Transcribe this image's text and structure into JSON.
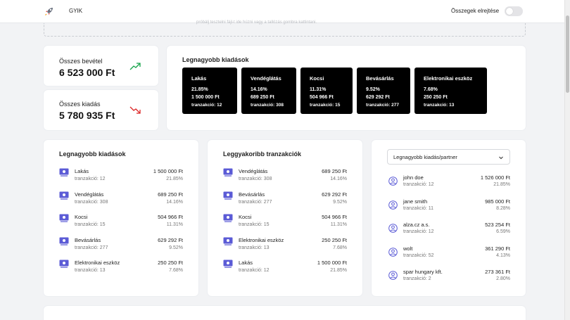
{
  "nav": {
    "link": "GYIK",
    "toggle_label": "Összegek elrejtése",
    "logo": "rocket-icon"
  },
  "upload_hint": "próbálj tesztelni fájl-t ide húzni vagy a tallózás gombra kattintani.",
  "income": {
    "label": "Összes bevétel",
    "value": "6 523 000 Ft",
    "trend": "trend-up-icon",
    "color": "#16a34a"
  },
  "expense": {
    "label": "Összes kiadás",
    "value": "5 780 935 Ft",
    "trend": "trend-down-icon",
    "color": "#dc2626"
  },
  "top_categories": {
    "title": "Legnagyobb kiadások",
    "cards": [
      {
        "name": "Lakás",
        "pct": "21.85%",
        "amount": "1 500 000 Ft",
        "tx": "tranzakció: 12"
      },
      {
        "name": "Vendéglátás",
        "pct": "14.16%",
        "amount": "689 250 Ft",
        "tx": "tranzakció: 308"
      },
      {
        "name": "Kocsi",
        "pct": "11.31%",
        "amount": "504 966 Ft",
        "tx": "tranzakció: 15"
      },
      {
        "name": "Bevásárlás",
        "pct": "9.52%",
        "amount": "629 292 Ft",
        "tx": "tranzakció: 277"
      },
      {
        "name": "Elektronikai eszköz",
        "pct": "7.68%",
        "amount": "250 250 Ft",
        "tx": "tranzakció: 13"
      }
    ]
  },
  "largest": {
    "title": "Legnagyobb kiadások",
    "rows": [
      {
        "name": "Lakás",
        "tx": "tranzakció: 12",
        "amount": "1 500 000 Ft",
        "pct": "21.85%"
      },
      {
        "name": "Vendéglátás",
        "tx": "tranzakció: 308",
        "amount": "689 250 Ft",
        "pct": "14.16%"
      },
      {
        "name": "Kocsi",
        "tx": "tranzakció: 15",
        "amount": "504 966 Ft",
        "pct": "11.31%"
      },
      {
        "name": "Bevásárlás",
        "tx": "tranzakció: 277",
        "amount": "629 292 Ft",
        "pct": "9.52%"
      },
      {
        "name": "Elektronikai eszköz",
        "tx": "tranzakció: 13",
        "amount": "250 250 Ft",
        "pct": "7.68%"
      }
    ]
  },
  "frequent": {
    "title": "Leggyakoribb tranzakciók",
    "rows": [
      {
        "name": "Vendéglátás",
        "tx": "tranzakció: 308",
        "amount": "689 250 Ft",
        "pct": "14.16%"
      },
      {
        "name": "Bevásárlás",
        "tx": "tranzakció: 277",
        "amount": "629 292 Ft",
        "pct": "9.52%"
      },
      {
        "name": "Kocsi",
        "tx": "tranzakció: 15",
        "amount": "504 966 Ft",
        "pct": "11.31%"
      },
      {
        "name": "Elektronikai eszköz",
        "tx": "tranzakció: 13",
        "amount": "250 250 Ft",
        "pct": "7.68%"
      },
      {
        "name": "Lakás",
        "tx": "tranzakció: 12",
        "amount": "1 500 000 Ft",
        "pct": "21.85%"
      }
    ]
  },
  "partners": {
    "select_label": "Legnagyobb kiadás/partner",
    "rows": [
      {
        "name": "john doe",
        "tx": "tranzakció: 12",
        "amount": "1 526 000 Ft",
        "pct": "21.85%"
      },
      {
        "name": "jane smith",
        "tx": "tranzakció: 11",
        "amount": "985 000 Ft",
        "pct": "8.28%"
      },
      {
        "name": "alza.cz a.s.",
        "tx": "tranzakció: 12",
        "amount": "523 254 Ft",
        "pct": "6.59%"
      },
      {
        "name": "wolt",
        "tx": "tranzakció: 52",
        "amount": "361 290 Ft",
        "pct": "4.13%"
      },
      {
        "name": "spar hungary kft.",
        "tx": "tranzakció: 2",
        "amount": "273 361 Ft",
        "pct": "2.80%"
      }
    ]
  },
  "colors": {
    "accent": "#5b5bd6",
    "card_black": "#000000"
  }
}
